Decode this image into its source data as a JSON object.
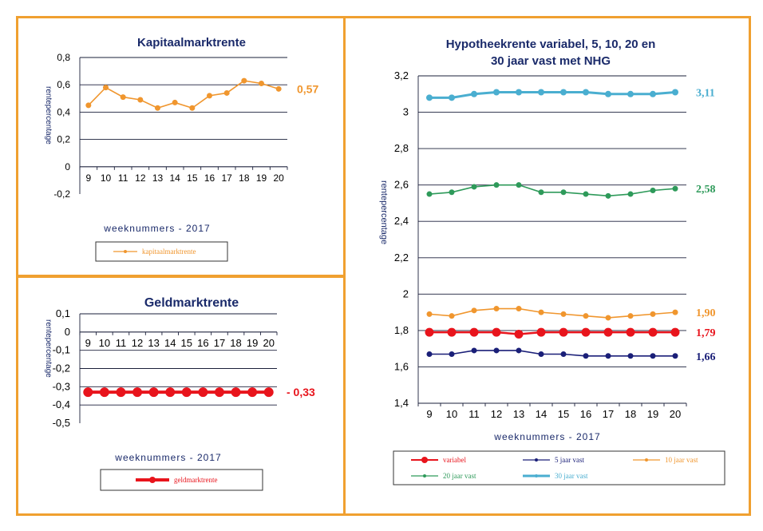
{
  "chart_data": [
    {
      "type": "line",
      "title": "Kapitaalmarktrente",
      "xlabel": "weeknummers - 2017",
      "ylabel": "rentepercentage",
      "ylim": [
        -0.2,
        0.8
      ],
      "yticks": [
        "0,8",
        "0,6",
        "0,4",
        "0,2",
        "0",
        "-0,2"
      ],
      "categories": [
        "9",
        "10",
        "11",
        "12",
        "13",
        "14",
        "15",
        "16",
        "17",
        "18",
        "19",
        "20"
      ],
      "series": [
        {
          "name": "kapitaalmarktrente",
          "color": "#f0962e",
          "values": [
            0.45,
            0.58,
            0.51,
            0.49,
            0.43,
            0.47,
            0.43,
            0.52,
            0.54,
            0.63,
            0.61,
            0.57
          ],
          "end_label": "0,57"
        }
      ]
    },
    {
      "type": "line",
      "title": "Geldmarktrente",
      "xlabel": "weeknummers - 2017",
      "ylabel": "rentepercentage",
      "ylim": [
        -0.5,
        0.1
      ],
      "yticks": [
        "0,1",
        "0",
        "-0,1",
        "-0,2",
        "-0,3",
        "-0,4",
        "-0,5"
      ],
      "categories": [
        "9",
        "10",
        "11",
        "12",
        "13",
        "14",
        "15",
        "16",
        "17",
        "18",
        "19",
        "20"
      ],
      "series": [
        {
          "name": "geldmarktrente",
          "color": "#e8141c",
          "values": [
            -0.33,
            -0.33,
            -0.33,
            -0.33,
            -0.33,
            -0.33,
            -0.33,
            -0.33,
            -0.33,
            -0.33,
            -0.33,
            -0.33
          ],
          "end_label": "- 0,33"
        }
      ]
    },
    {
      "type": "line",
      "title_line1": "Hypotheekrente variabel, 5, 10, 20 en",
      "title_line2": "30 jaar vast met NHG",
      "xlabel": "weeknummers - 2017",
      "ylabel": "rentepercentage",
      "ylim": [
        1.4,
        3.2
      ],
      "yticks": [
        "3,2",
        "3",
        "2,8",
        "2,6",
        "2,4",
        "2,2",
        "2",
        "1,8",
        "1,6",
        "1,4"
      ],
      "categories": [
        "9",
        "10",
        "11",
        "12",
        "13",
        "14",
        "15",
        "16",
        "17",
        "18",
        "19",
        "20"
      ],
      "series": [
        {
          "name": "variabel",
          "color": "#e8141c",
          "values": [
            1.79,
            1.79,
            1.79,
            1.79,
            1.78,
            1.79,
            1.79,
            1.79,
            1.79,
            1.79,
            1.79,
            1.79
          ],
          "end_label": "1,79"
        },
        {
          "name": "5 jaar vast",
          "color": "#1a1f78",
          "values": [
            1.67,
            1.67,
            1.69,
            1.69,
            1.69,
            1.67,
            1.67,
            1.66,
            1.66,
            1.66,
            1.66,
            1.66
          ],
          "end_label": "1,66"
        },
        {
          "name": "10 jaar vast",
          "color": "#f0962e",
          "values": [
            1.89,
            1.88,
            1.91,
            1.92,
            1.92,
            1.9,
            1.89,
            1.88,
            1.87,
            1.88,
            1.89,
            1.9
          ],
          "end_label": "1,90"
        },
        {
          "name": "20 jaar vast",
          "color": "#2e9a5a",
          "values": [
            2.55,
            2.56,
            2.59,
            2.6,
            2.6,
            2.56,
            2.56,
            2.55,
            2.54,
            2.55,
            2.57,
            2.58
          ],
          "end_label": "2,58"
        },
        {
          "name": "30 jaar vast",
          "color": "#4aaed0",
          "values": [
            3.08,
            3.08,
            3.1,
            3.11,
            3.11,
            3.11,
            3.11,
            3.11,
            3.1,
            3.1,
            3.1,
            3.11
          ],
          "end_label": "3,11"
        }
      ]
    }
  ]
}
